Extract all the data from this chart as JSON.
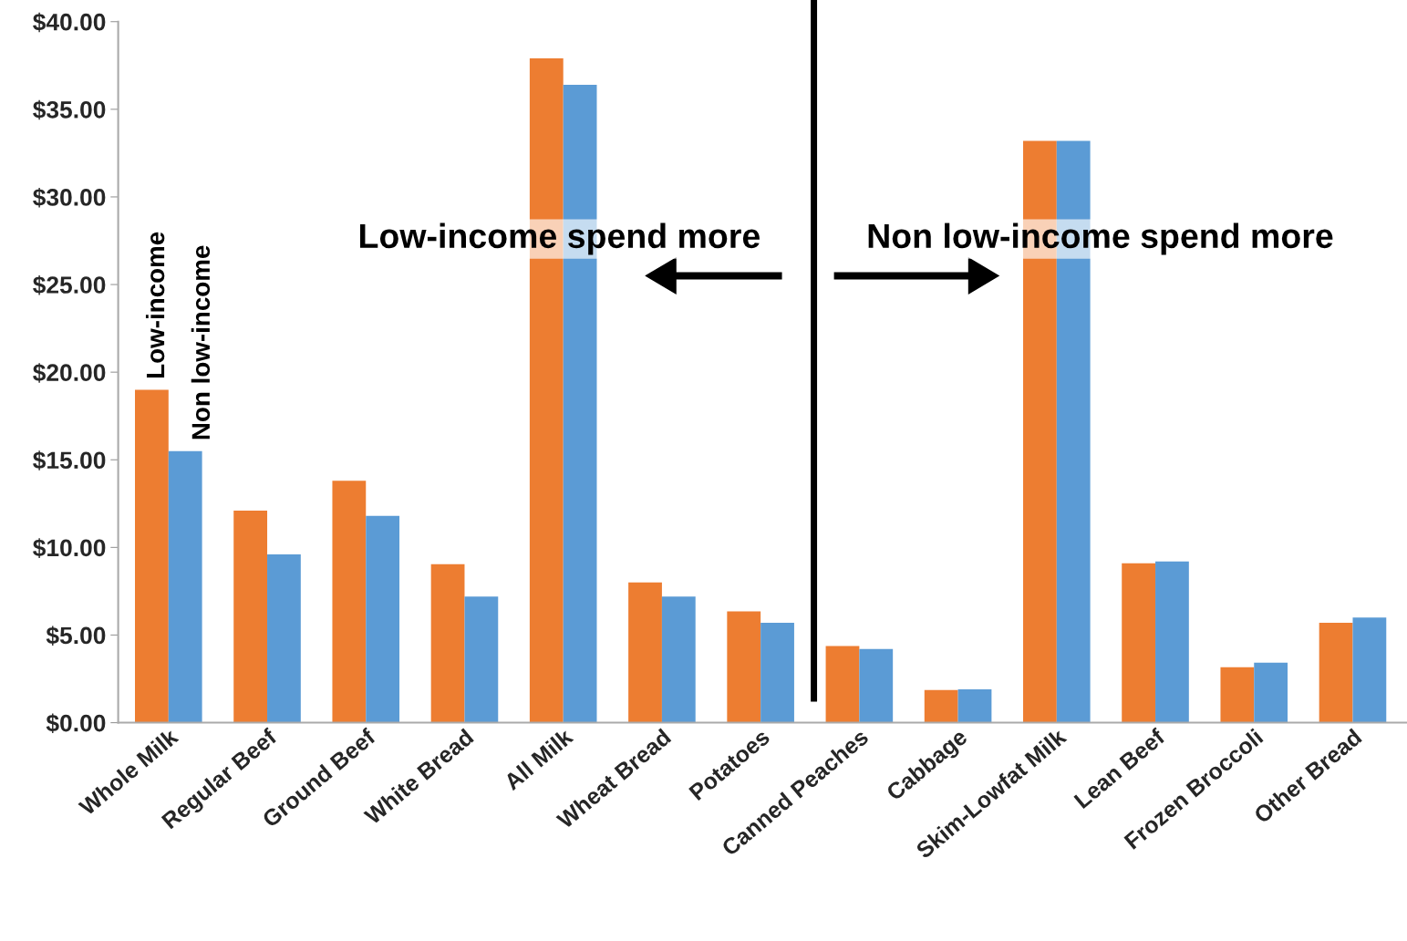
{
  "chart_data": {
    "type": "bar",
    "categories": [
      "Whole Milk",
      "Regular Beef",
      "Ground Beef",
      "White Bread",
      "All Milk",
      "Wheat Bread",
      "Potatoes",
      "Canned Peaches",
      "Cabbage",
      "Skim-Lowfat Milk",
      "Lean Beef",
      "Frozen Broccoli",
      "Other Bread"
    ],
    "series": [
      {
        "name": "Low-income",
        "color": "#ed7d31",
        "values": [
          19.0,
          12.1,
          13.8,
          9.05,
          37.9,
          8.0,
          6.35,
          4.37,
          1.87,
          33.2,
          9.1,
          3.17,
          5.7
        ]
      },
      {
        "name": "Non low-income",
        "color": "#5b9bd5",
        "values": [
          15.5,
          9.6,
          11.8,
          7.2,
          36.4,
          7.2,
          5.7,
          4.2,
          1.9,
          33.2,
          9.2,
          3.43,
          6.0
        ]
      }
    ],
    "ylim": [
      0,
      40
    ],
    "yticks": [
      {
        "value": 0,
        "label": "$0.00"
      },
      {
        "value": 5,
        "label": "$5.00"
      },
      {
        "value": 10,
        "label": "$10.00"
      },
      {
        "value": 15,
        "label": "$15.00"
      },
      {
        "value": 20,
        "label": "$20.00"
      },
      {
        "value": 25,
        "label": "$25.00"
      },
      {
        "value": 30,
        "label": "$30.00"
      },
      {
        "value": 35,
        "label": "$35.00"
      },
      {
        "value": 40,
        "label": "$40.00"
      }
    ],
    "annotations": [
      "Low-income spend more",
      "Non low-income spend more"
    ],
    "grid": false,
    "legend": false
  }
}
